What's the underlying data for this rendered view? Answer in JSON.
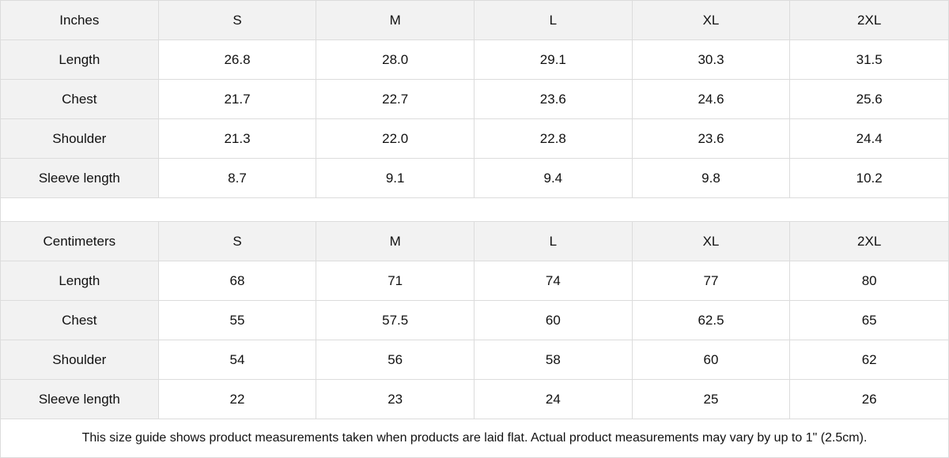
{
  "tables": [
    {
      "unit": "Inches",
      "sizes": [
        "S",
        "M",
        "L",
        "XL",
        "2XL"
      ],
      "rows": [
        {
          "label": "Length",
          "values": [
            "26.8",
            "28.0",
            "29.1",
            "30.3",
            "31.5"
          ]
        },
        {
          "label": "Chest",
          "values": [
            "21.7",
            "22.7",
            "23.6",
            "24.6",
            "25.6"
          ]
        },
        {
          "label": "Shoulder",
          "values": [
            "21.3",
            "22.0",
            "22.8",
            "23.6",
            "24.4"
          ]
        },
        {
          "label": "Sleeve length",
          "values": [
            "8.7",
            "9.1",
            "9.4",
            "9.8",
            "10.2"
          ]
        }
      ]
    },
    {
      "unit": "Centimeters",
      "sizes": [
        "S",
        "M",
        "L",
        "XL",
        "2XL"
      ],
      "rows": [
        {
          "label": "Length",
          "values": [
            "68",
            "71",
            "74",
            "77",
            "80"
          ]
        },
        {
          "label": "Chest",
          "values": [
            "55",
            "57.5",
            "60",
            "62.5",
            "65"
          ]
        },
        {
          "label": "Shoulder",
          "values": [
            "54",
            "56",
            "58",
            "60",
            "62"
          ]
        },
        {
          "label": "Sleeve length",
          "values": [
            "22",
            "23",
            "24",
            "25",
            "26"
          ]
        }
      ]
    }
  ],
  "note": "This size guide shows product measurements taken when products are laid flat.  Actual product measurements may vary by up to 1\" (2.5cm).",
  "colors": {
    "header_bg": "#f2f2f2",
    "border": "#dcdcdc"
  }
}
